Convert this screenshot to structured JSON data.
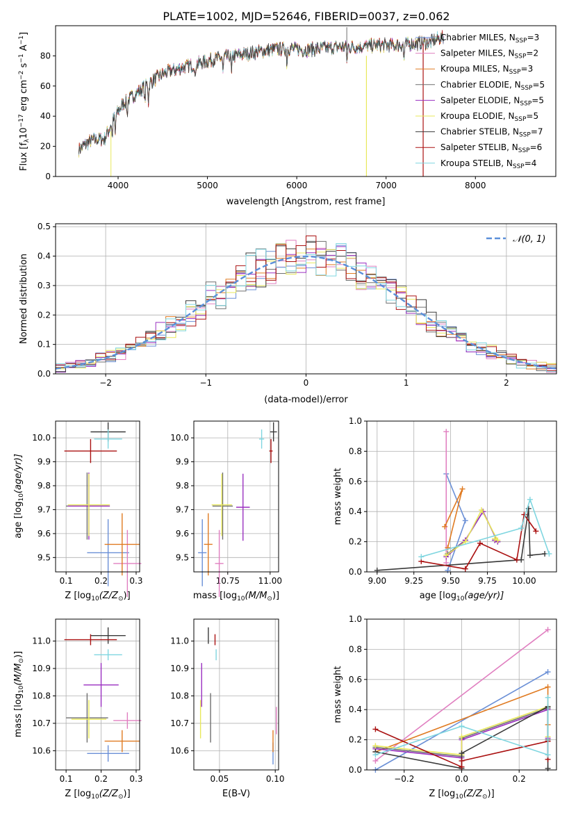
{
  "figure_title": "PLATE=1002, MJD=52646, FIBERID=0037, z=0.062",
  "model_colors": [
    "#6a8fd6",
    "#e07fc0",
    "#e07b22",
    "#6f6f6f",
    "#9a2fc0",
    "#e8e85a",
    "#3a3a3a",
    "#aa1111",
    "#7fd6e0"
  ],
  "chart_data": [
    {
      "id": "spectrum",
      "type": "line",
      "title": "",
      "xlabel": "wavelength [Angstrom, rest frame]",
      "ylabel_parts": [
        "Flux [f",
        "λ",
        "10",
        "−17",
        " erg cm",
        "−2",
        " s",
        "−1",
        " A",
        "−1",
        "]"
      ],
      "xlim": [
        3300,
        8900
      ],
      "ylim": [
        0,
        100
      ],
      "xticks": [
        4000,
        5000,
        6000,
        7000,
        8000
      ],
      "yticks": [
        0,
        20,
        40,
        60,
        80
      ],
      "grid": false,
      "legend_position": "top-right",
      "series": [
        {
          "name": "Chabrier MILES, N",
          "sub": "SSP",
          "tail": "=3"
        },
        {
          "name": "Salpeter MILES, N",
          "sub": "SSP",
          "tail": "=2"
        },
        {
          "name": "Kroupa MILES, N",
          "sub": "SSP",
          "tail": "=3"
        },
        {
          "name": "Chabrier ELODIE, N",
          "sub": "SSP",
          "tail": "=5"
        },
        {
          "name": "Salpeter ELODIE, N",
          "sub": "SSP",
          "tail": "=5"
        },
        {
          "name": "Kroupa ELODIE, N",
          "sub": "SSP",
          "tail": "=5"
        },
        {
          "name": "Chabrier STELIB, N",
          "sub": "SSP",
          "tail": "=7"
        },
        {
          "name": "Salpeter STELIB, N",
          "sub": "SSP",
          "tail": "=6"
        },
        {
          "name": "Kroupa STELIB, N",
          "sub": "SSP",
          "tail": "=4"
        }
      ],
      "continuum": {
        "x": [
          3560,
          3700,
          3850,
          3950,
          4050,
          4200,
          4350,
          4500,
          4700,
          4900,
          5100,
          5300,
          5500,
          5700,
          5900,
          6100,
          6300,
          6500,
          6700,
          6900,
          7100,
          7300,
          7500,
          7600
        ],
        "y": [
          18,
          24,
          25,
          38,
          48,
          55,
          62,
          68,
          72,
          75,
          78,
          80,
          82,
          84,
          85,
          84,
          85,
          86,
          86,
          87,
          87,
          88,
          89,
          92
        ]
      }
    },
    {
      "id": "residuals",
      "type": "histogram",
      "title": "",
      "xlabel": "(data-model)/error",
      "ylabel": "Normed distribution",
      "xlim": [
        -2.5,
        2.5
      ],
      "ylim": [
        0,
        0.51
      ],
      "xticks": [
        -2,
        -1,
        0,
        1,
        2
      ],
      "yticks": [
        0.0,
        0.1,
        0.2,
        0.3,
        0.4,
        0.5
      ],
      "grid": true,
      "legend_position": "top-right",
      "reference_curve": {
        "name": "𝒩(0, 1)",
        "mean": 0,
        "sigma": 1
      },
      "bin_width": 0.1
    },
    {
      "id": "age-vs-Z",
      "type": "errorbar",
      "xlabel_parts": [
        "Z [log",
        "10",
        "(Z/Z",
        "⊙",
        ")]"
      ],
      "ylabel_parts": [
        "age  [log",
        "10",
        "(age/yr)]"
      ],
      "xlim": [
        0.07,
        0.31
      ],
      "ylim": [
        9.44,
        10.07
      ],
      "xticks": [
        "0.1",
        "0.2",
        "0.3"
      ],
      "yticks": [
        "9.5",
        "9.6",
        "9.7",
        "9.8",
        "9.9",
        "10.0"
      ],
      "grid": true,
      "points": [
        {
          "x": 0.22,
          "y": 9.52,
          "xerr": 0.06,
          "yerr": 0.14
        },
        {
          "x": 0.275,
          "y": 9.475,
          "xerr": 0.04,
          "yerr": 0.14
        },
        {
          "x": 0.26,
          "y": 9.555,
          "xerr": 0.05,
          "yerr": 0.13
        },
        {
          "x": 0.16,
          "y": 9.715,
          "xerr": 0.06,
          "yerr": 0.14
        },
        {
          "x": 0.165,
          "y": 9.715,
          "xerr": 0.06,
          "yerr": 0.14
        },
        {
          "x": 0.165,
          "y": 9.72,
          "xerr": 0.06,
          "yerr": 0.13
        },
        {
          "x": 0.22,
          "y": 10.025,
          "xerr": 0.05,
          "yerr": 0.04
        },
        {
          "x": 0.17,
          "y": 9.945,
          "xerr": 0.075,
          "yerr": 0.05
        },
        {
          "x": 0.22,
          "y": 9.995,
          "xerr": 0.04,
          "yerr": 0.04
        }
      ]
    },
    {
      "id": "age-vs-mass",
      "type": "errorbar",
      "xlabel_parts": [
        "mass [log",
        "10",
        "(M/M",
        "⊙",
        ")]"
      ],
      "xlim": [
        10.55,
        11.05
      ],
      "ylim": [
        9.44,
        10.07
      ],
      "xticks": [
        "10.75",
        "11.00"
      ],
      "yticks": [
        "9.5",
        "9.6",
        "9.7",
        "9.8",
        "9.9",
        "10.0"
      ],
      "grid": true,
      "points": [
        {
          "x": 10.6,
          "y": 9.52,
          "xerr": 0.025,
          "yerr": 0.14
        },
        {
          "x": 10.7,
          "y": 9.475,
          "xerr": 0.025,
          "yerr": 0.14
        },
        {
          "x": 10.635,
          "y": 9.555,
          "xerr": 0.025,
          "yerr": 0.13
        },
        {
          "x": 10.72,
          "y": 9.715,
          "xerr": 0.06,
          "yerr": 0.14
        },
        {
          "x": 10.84,
          "y": 9.71,
          "xerr": 0.04,
          "yerr": 0.14
        },
        {
          "x": 10.715,
          "y": 9.72,
          "xerr": 0.06,
          "yerr": 0.13
        },
        {
          "x": 11.02,
          "y": 10.025,
          "xerr": 0.02,
          "yerr": 0.04
        },
        {
          "x": 11.005,
          "y": 9.945,
          "xerr": 0.01,
          "yerr": 0.05
        },
        {
          "x": 10.95,
          "y": 9.995,
          "xerr": 0.015,
          "yerr": 0.04
        }
      ]
    },
    {
      "id": "weight-vs-age",
      "type": "line",
      "ylabel": "mass weight",
      "xlabel_parts": [
        "age  [log",
        "10",
        "(age/yr)]"
      ],
      "xlim": [
        8.93,
        10.22
      ],
      "ylim": [
        0,
        1
      ],
      "xticks": [
        "9.00",
        "9.25",
        "9.50",
        "9.75",
        "10.00"
      ],
      "yticks": [
        "0.0",
        "0.2",
        "0.4",
        "0.6",
        "0.8",
        "1.0"
      ],
      "grid": true,
      "series": [
        {
          "x": [
            9.48,
            9.6,
            9.47
          ],
          "y": [
            0.01,
            0.34,
            0.65
          ]
        },
        {
          "x": [
            9.47,
            9.47
          ],
          "y": [
            0.06,
            0.93
          ]
        },
        {
          "x": [
            9.48,
            9.58,
            9.46
          ],
          "y": [
            0.16,
            0.55,
            0.3
          ]
        },
        {
          "x": [
            9.48,
            9.6,
            9.72,
            9.82,
            9.8
          ],
          "y": [
            0.12,
            0.21,
            0.4,
            0.2,
            0.21
          ]
        },
        {
          "x": [
            9.47,
            9.6,
            9.72,
            9.82,
            9.8
          ],
          "y": [
            0.1,
            0.21,
            0.4,
            0.2,
            0.21
          ]
        },
        {
          "x": [
            9.47,
            9.6,
            9.71,
            9.82,
            9.8
          ],
          "y": [
            0.11,
            0.2,
            0.41,
            0.21,
            0.22
          ]
        },
        {
          "x": [
            9.0,
            9.98,
            10.03,
            10.04,
            10.14
          ],
          "y": [
            0.01,
            0.08,
            0.42,
            0.11,
            0.12
          ]
        },
        {
          "x": [
            9.3,
            9.6,
            9.7,
            9.95,
            10.0,
            10.08
          ],
          "y": [
            0.07,
            0.02,
            0.19,
            0.08,
            0.38,
            0.27
          ]
        },
        {
          "x": [
            9.3,
            9.98,
            10.04,
            10.17
          ],
          "y": [
            0.1,
            0.29,
            0.48,
            0.12
          ]
        }
      ]
    },
    {
      "id": "mass-vs-Z",
      "type": "errorbar",
      "xlabel_parts": [
        "Z [log",
        "10",
        "(Z/Z",
        "⊙",
        ")]"
      ],
      "ylabel_parts": [
        "mass [log",
        "10",
        "(M/M",
        "⊙",
        ")]"
      ],
      "xlim": [
        0.07,
        0.31
      ],
      "ylim": [
        10.53,
        11.08
      ],
      "xticks": [
        "0.1",
        "0.2",
        "0.3"
      ],
      "yticks": [
        "10.6",
        "10.7",
        "10.8",
        "10.9",
        "11.0"
      ],
      "grid": true,
      "points": [
        {
          "x": 0.22,
          "y": 10.59,
          "xerr": 0.06,
          "yerr": 0.03
        },
        {
          "x": 0.275,
          "y": 10.71,
          "xerr": 0.04,
          "yerr": 0.03
        },
        {
          "x": 0.26,
          "y": 10.635,
          "xerr": 0.05,
          "yerr": 0.04
        },
        {
          "x": 0.16,
          "y": 10.72,
          "xerr": 0.06,
          "yerr": 0.09
        },
        {
          "x": 0.2,
          "y": 10.84,
          "xerr": 0.05,
          "yerr": 0.08
        },
        {
          "x": 0.165,
          "y": 10.715,
          "xerr": 0.05,
          "yerr": 0.07
        },
        {
          "x": 0.22,
          "y": 11.02,
          "xerr": 0.05,
          "yerr": 0.03
        },
        {
          "x": 0.17,
          "y": 11.005,
          "xerr": 0.075,
          "yerr": 0.02
        },
        {
          "x": 0.22,
          "y": 10.95,
          "xerr": 0.04,
          "yerr": 0.02
        }
      ]
    },
    {
      "id": "mass-vs-EBV",
      "type": "errorbar",
      "xlabel": "E(B-V)",
      "xlim": [
        0.027,
        0.103
      ],
      "ylim": [
        10.53,
        11.08
      ],
      "xticks": [
        "0.05",
        "0.10"
      ],
      "yticks": [
        "10.6",
        "10.7",
        "10.8",
        "10.9",
        "11.0"
      ],
      "grid": true,
      "points": [
        {
          "x": 0.098,
          "y": 10.59,
          "xerr": 0,
          "yerr": 0.04
        },
        {
          "x": 0.101,
          "y": 10.71,
          "xerr": 0,
          "yerr": 0.05
        },
        {
          "x": 0.098,
          "y": 10.635,
          "xerr": 0,
          "yerr": 0.04
        },
        {
          "x": 0.042,
          "y": 10.72,
          "xerr": 0,
          "yerr": 0.09
        },
        {
          "x": 0.034,
          "y": 10.84,
          "xerr": 0,
          "yerr": 0.08
        },
        {
          "x": 0.033,
          "y": 10.715,
          "xerr": 0,
          "yerr": 0.07
        },
        {
          "x": 0.04,
          "y": 11.02,
          "xerr": 0,
          "yerr": 0.03
        },
        {
          "x": 0.046,
          "y": 11.005,
          "xerr": 0,
          "yerr": 0.02
        },
        {
          "x": 0.047,
          "y": 10.95,
          "xerr": 0,
          "yerr": 0.02
        }
      ]
    },
    {
      "id": "weight-vs-Z",
      "type": "line",
      "ylabel": "mass weight",
      "xlabel_parts": [
        "Z [log",
        "10",
        "(Z/Z",
        "⊙",
        ")]"
      ],
      "xlim": [
        -0.33,
        0.33
      ],
      "ylim": [
        0,
        1
      ],
      "xticks": [
        "−0.2",
        "0.0",
        "0.2"
      ],
      "yticks": [
        "0.0",
        "0.2",
        "0.4",
        "0.6",
        "0.8",
        "1.0"
      ],
      "grid": true,
      "series": [
        {
          "x": [
            -0.3,
            0.3
          ],
          "y": [
            0.0,
            0.65
          ]
        },
        {
          "x": [
            -0.3,
            0.3
          ],
          "y": [
            0.06,
            0.93
          ]
        },
        {
          "x": [
            -0.3,
            0.3,
            0.3
          ],
          "y": [
            0.12,
            0.55,
            0.3
          ]
        },
        {
          "x": [
            -0.3,
            0.0,
            0.0,
            0.3,
            0.3
          ],
          "y": [
            0.15,
            0.09,
            0.21,
            0.41,
            0.2
          ]
        },
        {
          "x": [
            -0.3,
            0.0,
            0.0,
            0.3,
            0.3
          ],
          "y": [
            0.14,
            0.08,
            0.2,
            0.4,
            0.21
          ]
        },
        {
          "x": [
            -0.3,
            0.0,
            0.0,
            0.3,
            0.3
          ],
          "y": [
            0.16,
            0.1,
            0.22,
            0.42,
            0.22
          ]
        },
        {
          "x": [
            -0.3,
            0.0,
            0.0,
            0.3,
            0.3
          ],
          "y": [
            0.12,
            0.01,
            0.11,
            0.42,
            0.01
          ]
        },
        {
          "x": [
            -0.3,
            0.0,
            0.0,
            0.3,
            0.3
          ],
          "y": [
            0.27,
            0.02,
            0.06,
            0.19,
            0.07
          ]
        },
        {
          "x": [
            -0.3,
            0.0,
            0.3,
            0.3
          ],
          "y": [
            0.1,
            0.29,
            0.1,
            0.48
          ]
        }
      ]
    }
  ]
}
